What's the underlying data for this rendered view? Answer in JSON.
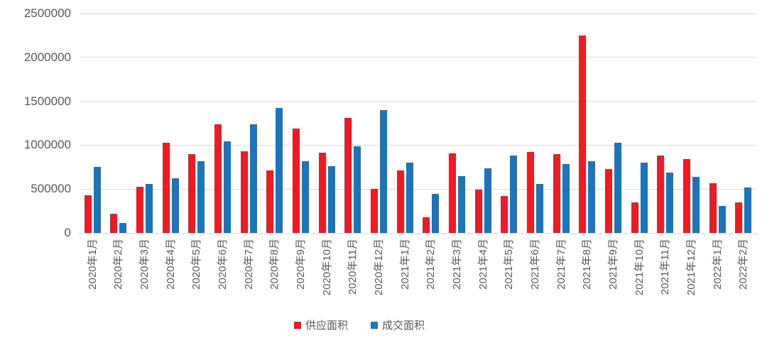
{
  "chart": {
    "background_color": "#ffffff",
    "text_color": "#595959",
    "gridline_color": "#d9d9d9"
  },
  "chart_data": {
    "type": "bar",
    "categories": [
      "2020年1月",
      "2020年2月",
      "2020年3月",
      "2020年4月",
      "2020年5月",
      "2020年6月",
      "2020年7月",
      "2020年8月",
      "2020年9月",
      "2020年10月",
      "2020年11月",
      "2020年12月",
      "2021年1月",
      "2021年2月",
      "2021年3月",
      "2021年4月",
      "2021年5月",
      "2021年6月",
      "2021年7月",
      "2021年8月",
      "2021年9月",
      "2021年10月",
      "2021年11月",
      "2021年12月",
      "2022年1月",
      "2022年2月"
    ],
    "series": [
      {
        "name": "供应面积",
        "color": "#ed1c24",
        "values": [
          425000,
          220000,
          530000,
          1030000,
          900000,
          1240000,
          930000,
          715000,
          1190000,
          915000,
          1310000,
          500000,
          710000,
          175000,
          905000,
          495000,
          420000,
          925000,
          895000,
          2250000,
          725000,
          345000,
          880000,
          845000,
          565000,
          350000
        ]
      },
      {
        "name": "成交面积",
        "color": "#1b75bc",
        "values": [
          755000,
          110000,
          560000,
          620000,
          820000,
          1045000,
          1235000,
          1425000,
          820000,
          760000,
          990000,
          1400000,
          800000,
          445000,
          645000,
          740000,
          880000,
          560000,
          785000,
          815000,
          1025000,
          800000,
          690000,
          640000,
          310000,
          515000
        ]
      }
    ],
    "ylim": [
      0,
      2500000
    ],
    "yticks": [
      0,
      500000,
      1000000,
      1500000,
      2000000,
      2500000
    ],
    "ytick_labels": [
      "0",
      "500000",
      "1000000",
      "1500000",
      "2000000",
      "2500000"
    ],
    "grid": true,
    "legend_position": "bottom"
  }
}
